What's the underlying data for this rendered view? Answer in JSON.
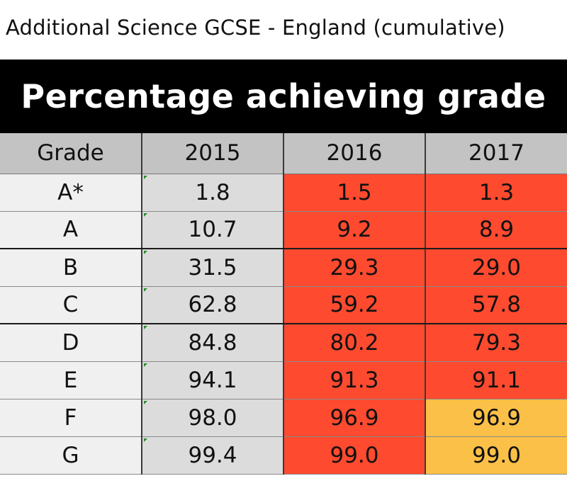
{
  "title": "Additional Science GCSE - England (cumulative)",
  "banner": "Percentage achieving grade",
  "table": {
    "headers": [
      "Grade",
      "2015",
      "2016",
      "2017"
    ],
    "rows": [
      {
        "grade": "A*",
        "y2015": "1.8",
        "y2016": "1.5",
        "y2017": "1.3",
        "c2016": "red",
        "c2017": "red"
      },
      {
        "grade": "A",
        "y2015": "10.7",
        "y2016": "9.2",
        "y2017": "8.9",
        "c2016": "red",
        "c2017": "red"
      },
      {
        "grade": "B",
        "y2015": "31.5",
        "y2016": "29.3",
        "y2017": "29.0",
        "c2016": "red",
        "c2017": "red"
      },
      {
        "grade": "C",
        "y2015": "62.8",
        "y2016": "59.2",
        "y2017": "57.8",
        "c2016": "red",
        "c2017": "red"
      },
      {
        "grade": "D",
        "y2015": "84.8",
        "y2016": "80.2",
        "y2017": "79.3",
        "c2016": "red",
        "c2017": "red"
      },
      {
        "grade": "E",
        "y2015": "94.1",
        "y2016": "91.3",
        "y2017": "91.1",
        "c2016": "red",
        "c2017": "red"
      },
      {
        "grade": "F",
        "y2015": "98.0",
        "y2016": "96.9",
        "y2017": "96.9",
        "c2016": "red",
        "c2017": "amber"
      },
      {
        "grade": "G",
        "y2015": "99.4",
        "y2016": "99.0",
        "y2017": "99.0",
        "c2016": "red",
        "c2017": "amber"
      }
    ]
  },
  "colors": {
    "decrease": "#fe4a2f",
    "no_change": "#fbc047",
    "header": "#c3c3c3",
    "banner": "#000000"
  }
}
